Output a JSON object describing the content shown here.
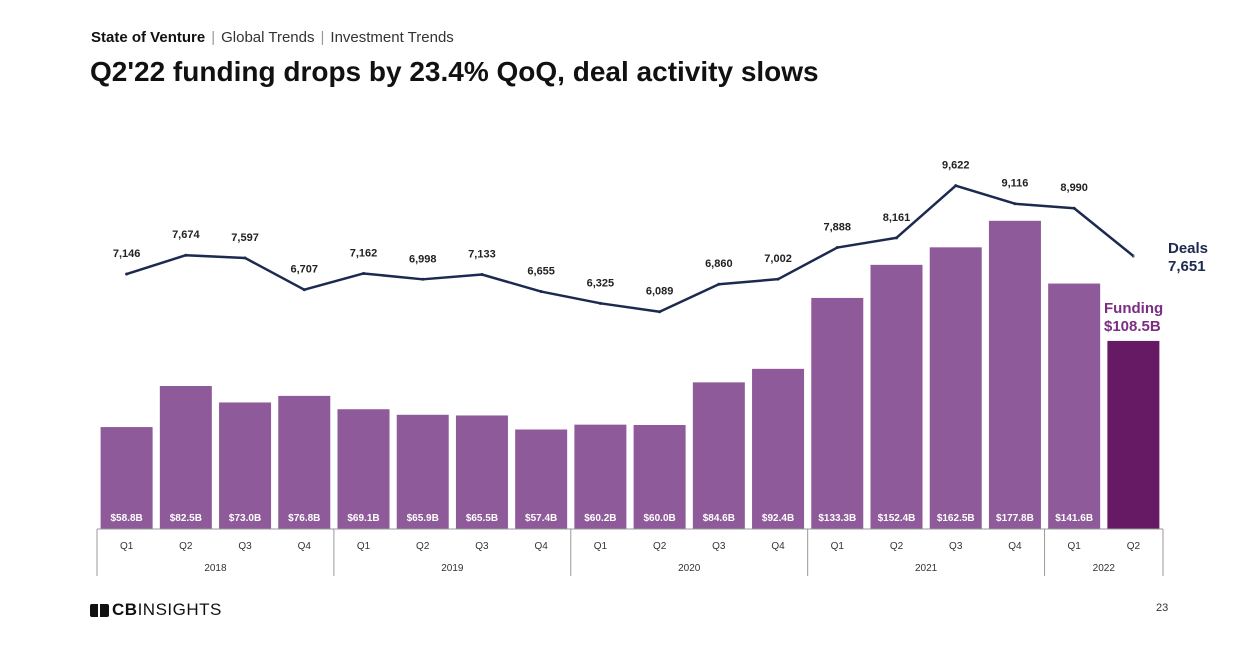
{
  "header": {
    "breadcrumb": [
      "State of Venture",
      "Global Trends",
      "Investment Trends"
    ],
    "title": "Q2'22 funding drops by 23.4% QoQ, deal activity slows"
  },
  "footer": {
    "logo_bold": "CB",
    "logo_rest": "INSIGHTS",
    "page_number": "23"
  },
  "colors": {
    "bar": "#8e5a9a",
    "bar_highlight": "#661a63",
    "line": "#1c2a4f",
    "funding_label": "#7b2d82",
    "deals_label": "#1c2a4f"
  },
  "chart_data": {
    "type": "bar",
    "title": "Q2'22 funding drops by 23.4% QoQ, deal activity slows",
    "categories": [
      "Q1",
      "Q2",
      "Q3",
      "Q4",
      "Q1",
      "Q2",
      "Q3",
      "Q4",
      "Q1",
      "Q2",
      "Q3",
      "Q4",
      "Q1",
      "Q2",
      "Q3",
      "Q4",
      "Q1",
      "Q2"
    ],
    "year_groups": [
      {
        "label": "2018",
        "count": 4
      },
      {
        "label": "2019",
        "count": 4
      },
      {
        "label": "2020",
        "count": 4
      },
      {
        "label": "2021",
        "count": 4
      },
      {
        "label": "2022",
        "count": 2
      }
    ],
    "series": [
      {
        "name": "Funding",
        "type": "bar",
        "unit": "$B",
        "values": [
          58.8,
          82.5,
          73.0,
          76.8,
          69.1,
          65.9,
          65.5,
          57.4,
          60.2,
          60.0,
          84.6,
          92.4,
          133.3,
          152.4,
          162.5,
          177.8,
          141.6,
          108.5
        ],
        "labels": [
          "$58.8B",
          "$82.5B",
          "$73.0B",
          "$76.8B",
          "$69.1B",
          "$65.9B",
          "$65.5B",
          "$57.4B",
          "$60.2B",
          "$60.0B",
          "$84.6B",
          "$92.4B",
          "$133.3B",
          "$152.4B",
          "$162.5B",
          "$177.8B",
          "$141.6B",
          ""
        ]
      },
      {
        "name": "Deals",
        "type": "line",
        "values": [
          7146,
          7674,
          7597,
          6707,
          7162,
          6998,
          7133,
          6655,
          6325,
          6089,
          6860,
          7002,
          7888,
          8161,
          9622,
          9116,
          8990,
          7651
        ],
        "labels": [
          "7,146",
          "7,674",
          "7,597",
          "6,707",
          "7,162",
          "6,998",
          "7,133",
          "6,655",
          "6,325",
          "6,089",
          "6,860",
          "7,002",
          "7,888",
          "8,161",
          "9,622",
          "9,116",
          "8,990",
          ""
        ]
      }
    ],
    "annotations": {
      "funding_title": "Funding",
      "funding_value": "$108.5B",
      "deals_title": "Deals",
      "deals_value": "7,651"
    },
    "funding_ylim": [
      0,
      180
    ],
    "deals_ylim": [
      0,
      12500
    ]
  }
}
